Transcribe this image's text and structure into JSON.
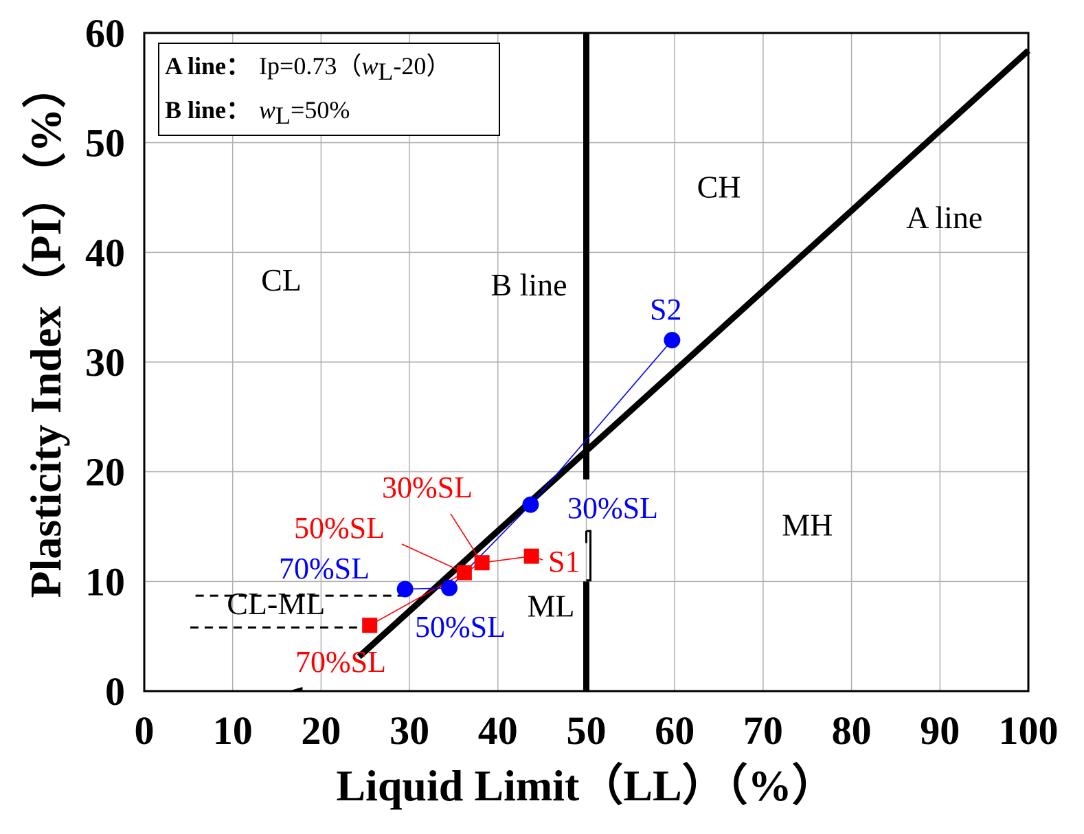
{
  "chart_data": {
    "type": "scatter",
    "xlabel": "Liquid Limit（LL）（%）",
    "ylabel": "Plasticity Index（PI）（%）",
    "xlim": [
      0,
      100
    ],
    "ylim": [
      0,
      60
    ],
    "grid": true,
    "x_ticks": [
      {
        "value": 0,
        "label": "0"
      },
      {
        "value": 10,
        "label": "10"
      },
      {
        "value": 20,
        "label": "20"
      },
      {
        "value": 30,
        "label": "30"
      },
      {
        "value": 40,
        "label": "40"
      },
      {
        "value": 50,
        "label": "50"
      },
      {
        "value": 60,
        "label": "60"
      },
      {
        "value": 70,
        "label": "70"
      },
      {
        "value": 80,
        "label": "80"
      },
      {
        "value": 90,
        "label": "90"
      },
      {
        "value": 100,
        "label": "100"
      }
    ],
    "y_ticks": [
      {
        "value": 0,
        "label": "0"
      },
      {
        "value": 10,
        "label": "10"
      },
      {
        "value": 20,
        "label": "20"
      },
      {
        "value": 30,
        "label": "30"
      },
      {
        "value": 40,
        "label": "40"
      },
      {
        "value": 50,
        "label": "50"
      },
      {
        "value": 60,
        "label": "60"
      }
    ],
    "legend": {
      "position": "top-left",
      "a_line": {
        "bold": "A line：",
        "text": "Ip=0.73（",
        "var": "w",
        "sub": "L",
        "tail": "-20）"
      },
      "b_line": {
        "bold": "B line：",
        "var": "w",
        "sub": "L",
        "tail": "=50%"
      }
    },
    "reference_lines": {
      "a_line": {
        "label": "A line",
        "equation": "PI = 0.73 (LL - 20)",
        "x_from": 24.3,
        "x_to": 100,
        "color": "#000000"
      },
      "b_line": {
        "label": "B line",
        "x": 50,
        "color": "#000000"
      },
      "cl_ml_upper": {
        "y": 8.7,
        "x_from": 5.8,
        "x_to": 29.5
      },
      "cl_ml_lower": {
        "y": 5.8,
        "x_from": 5.2,
        "x_to": 26
      }
    },
    "regions": [
      {
        "label": "CL",
        "x": 15.5,
        "y": 36.5
      },
      {
        "label": "CH",
        "x": 65,
        "y": 45
      },
      {
        "label": "A line",
        "x": 90.5,
        "y": 42.2
      },
      {
        "label": "MH",
        "x": 75,
        "y": 14.2
      },
      {
        "label": "ML",
        "x": 46,
        "y": 6.8
      },
      {
        "label": "CL-ML",
        "x": 14.9,
        "y": 7
      }
    ],
    "series": [
      {
        "name": "S1",
        "color": "#ff0000",
        "marker": "square",
        "points": [
          {
            "label": "S1",
            "x": 43.8,
            "y": 12.3
          },
          {
            "label": "30%SL",
            "x": 38.2,
            "y": 11.7
          },
          {
            "label": "50%SL",
            "x": 36.2,
            "y": 10.8
          },
          {
            "label": "70%SL",
            "x": 25.5,
            "y": 6.0
          }
        ]
      },
      {
        "name": "S2",
        "color": "#0000ff",
        "marker": "circle",
        "points": [
          {
            "label": "S2",
            "x": 59.7,
            "y": 32.0
          },
          {
            "label": "30%SL",
            "x": 43.7,
            "y": 17.0
          },
          {
            "label": "50%SL",
            "x": 34.5,
            "y": 9.4
          },
          {
            "label": "70%SL",
            "x": 29.5,
            "y": 9.3
          }
        ]
      }
    ]
  }
}
